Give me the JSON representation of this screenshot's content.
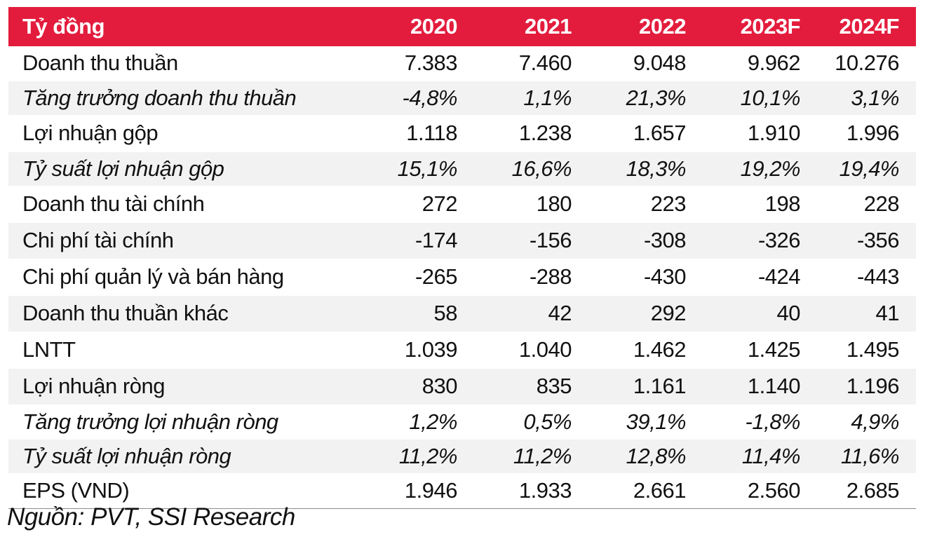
{
  "header": {
    "label": "Tỷ đồng",
    "years": [
      "2020",
      "2021",
      "2022",
      "2023F",
      "2024F"
    ]
  },
  "rows": [
    {
      "label": "Doanh thu thuần",
      "values": [
        "7.383",
        "7.460",
        "9.048",
        "9.962",
        "10.276"
      ],
      "italic": false
    },
    {
      "label": "Tăng trưởng doanh thu thuần",
      "values": [
        "-4,8%",
        "1,1%",
        "21,3%",
        "10,1%",
        "3,1%"
      ],
      "italic": true
    },
    {
      "label": "Lợi nhuận gộp",
      "values": [
        "1.118",
        "1.238",
        "1.657",
        "1.910",
        "1.996"
      ],
      "italic": false
    },
    {
      "label": "Tỷ suất lợi nhuận gộp",
      "values": [
        "15,1%",
        "16,6%",
        "18,3%",
        "19,2%",
        "19,4%"
      ],
      "italic": true
    },
    {
      "label": "Doanh thu tài chính",
      "values": [
        "272",
        "180",
        "223",
        "198",
        "228"
      ],
      "italic": false
    },
    {
      "label": "Chi phí tài chính",
      "values": [
        "-174",
        "-156",
        "-308",
        "-326",
        "-356"
      ],
      "italic": false
    },
    {
      "label": "Chi phí quản lý và bán hàng",
      "values": [
        "-265",
        "-288",
        "-430",
        "-424",
        "-443"
      ],
      "italic": false
    },
    {
      "label": "Doanh thu thuần khác",
      "values": [
        "58",
        "42",
        "292",
        "40",
        "41"
      ],
      "italic": false
    },
    {
      "label": "LNTT",
      "values": [
        "1.039",
        "1.040",
        "1.462",
        "1.425",
        "1.495"
      ],
      "italic": false
    },
    {
      "label": "Lợi nhuận ròng",
      "values": [
        "830",
        "835",
        "1.161",
        "1.140",
        "1.196"
      ],
      "italic": false
    },
    {
      "label": "Tăng trưởng lợi nhuận ròng",
      "values": [
        "1,2%",
        "0,5%",
        "39,1%",
        "-1,8%",
        "4,9%"
      ],
      "italic": true
    },
    {
      "label": "Tỷ suất lợi nhuận ròng",
      "values": [
        "11,2%",
        "11,2%",
        "12,8%",
        "11,4%",
        "11,6%"
      ],
      "italic": true
    },
    {
      "label": "EPS (VND)",
      "values": [
        "1.946",
        "1.933",
        "2.661",
        "2.560",
        "2.685"
      ],
      "italic": false
    }
  ],
  "source": "Nguồn: PVT, SSI Research",
  "colors": {
    "header_bg": "#e31c3d",
    "header_text": "#ffffff",
    "stripe": "#f2f2f2"
  }
}
